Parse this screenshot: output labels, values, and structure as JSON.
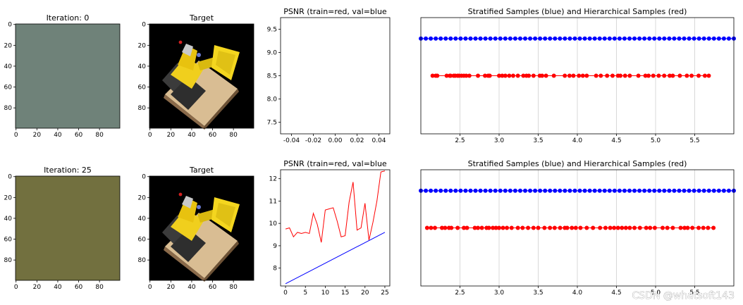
{
  "watermark": "CSDN @whatsoft143",
  "chart_data": [
    {
      "type": "heatmap",
      "title": "Iteration: 0",
      "fill_color": "#6f8279",
      "xticks": [
        "0",
        "20",
        "40",
        "60",
        "80"
      ],
      "yticks": [
        "0",
        "20",
        "40",
        "60",
        "80"
      ],
      "xlim": [
        0,
        100
      ],
      "ylim": [
        100,
        0
      ]
    },
    {
      "type": "heatmap",
      "title": "Target",
      "description_colors": {
        "background": "#000000",
        "base": "#d7b98f",
        "body": "#f2d21a"
      },
      "xticks": [
        "0",
        "20",
        "40",
        "60",
        "80"
      ],
      "yticks": [
        "0",
        "20",
        "40",
        "60",
        "80"
      ],
      "xlim": [
        0,
        100
      ],
      "ylim": [
        100,
        0
      ]
    },
    {
      "type": "line",
      "title": "PSNR (train=red, val=blue",
      "xlim": [
        -0.05,
        0.05
      ],
      "ylim": [
        7.25,
        9.75
      ],
      "xticks": [
        "-0.04",
        "-0.02",
        "0.00",
        "0.02",
        "0.04"
      ],
      "xtick_values": [
        -0.04,
        -0.02,
        0,
        0.02,
        0.04
      ],
      "yticks": [
        "7.5",
        "8.0",
        "8.5",
        "9.0",
        "9.5"
      ],
      "ytick_values": [
        7.5,
        8.0,
        8.5,
        9.0,
        9.5
      ],
      "series": []
    },
    {
      "type": "scatter",
      "title": "Stratified  Samples (blue) and Hierarchical Samples (red)",
      "xlim": [
        2.0,
        6.0
      ],
      "ylim": [
        0,
        1
      ],
      "xticks": [
        "2.5",
        "3.0",
        "3.5",
        "4.0",
        "4.5",
        "5.0",
        "5.5"
      ],
      "xtick_values": [
        2.5,
        3.0,
        3.5,
        4.0,
        4.5,
        5.0,
        5.5
      ],
      "grid": true,
      "series": [
        {
          "color": "#0000ff",
          "y": 0.82,
          "x_start": 2.0,
          "x_end": 6.0,
          "count": 64
        },
        {
          "color": "#ff0000",
          "y": 0.5,
          "x": [
            2.15,
            2.19,
            2.21,
            2.33,
            2.37,
            2.38,
            2.42,
            2.44,
            2.47,
            2.49,
            2.52,
            2.55,
            2.58,
            2.62,
            2.73,
            2.82,
            2.86,
            2.88,
            3.0,
            3.04,
            3.08,
            3.13,
            3.18,
            3.24,
            3.31,
            3.35,
            3.38,
            3.44,
            3.52,
            3.55,
            3.6,
            3.7,
            3.84,
            3.9,
            3.95,
            4.02,
            4.07,
            4.12,
            4.24,
            4.3,
            4.38,
            4.45,
            4.52,
            4.55,
            4.61,
            4.67,
            4.78,
            4.87,
            4.91,
            4.97,
            5.04,
            5.11,
            5.18,
            5.22,
            5.31,
            5.4,
            5.46,
            5.55,
            5.63,
            5.68
          ]
        }
      ]
    },
    {
      "type": "heatmap",
      "title": "Iteration: 25",
      "fill_color": "#72703f",
      "xticks": [
        "0",
        "20",
        "40",
        "60",
        "80"
      ],
      "yticks": [
        "0",
        "20",
        "40",
        "60",
        "80"
      ],
      "xlim": [
        0,
        100
      ],
      "ylim": [
        100,
        0
      ]
    },
    {
      "type": "heatmap",
      "title": "Target",
      "xticks": [
        "0",
        "20",
        "40",
        "60",
        "80"
      ],
      "yticks": [
        "0",
        "20",
        "40",
        "60",
        "80"
      ],
      "xlim": [
        0,
        100
      ],
      "ylim": [
        100,
        0
      ]
    },
    {
      "type": "line",
      "title": "PSNR (train=red, val=blue",
      "xlim": [
        -1.25,
        26.25
      ],
      "ylim": [
        7.2,
        12.4
      ],
      "xticks": [
        "0",
        "5",
        "10",
        "15",
        "20",
        "25"
      ],
      "xtick_values": [
        0,
        5,
        10,
        15,
        20,
        25
      ],
      "yticks": [
        "8",
        "9",
        "10",
        "11",
        "12"
      ],
      "ytick_values": [
        8,
        9,
        10,
        11,
        12
      ],
      "series": [
        {
          "color": "#ff0000",
          "x": [
            0,
            1,
            2,
            3,
            4,
            5,
            6,
            7,
            8,
            9,
            10,
            11,
            12,
            13,
            14,
            15,
            16,
            17,
            18,
            19,
            20,
            21,
            22,
            23,
            24,
            25
          ],
          "y": [
            9.75,
            9.8,
            9.4,
            9.6,
            9.55,
            9.6,
            9.55,
            10.45,
            9.95,
            9.15,
            10.6,
            10.65,
            10.7,
            10.1,
            9.4,
            9.45,
            10.95,
            11.85,
            9.7,
            9.8,
            10.9,
            9.25,
            10.05,
            11.0,
            12.3,
            12.35
          ]
        },
        {
          "color": "#0000ff",
          "x": [
            0,
            25
          ],
          "y": [
            7.3,
            9.6
          ]
        }
      ]
    },
    {
      "type": "scatter",
      "title": "Stratified  Samples (blue) and Hierarchical Samples (red)",
      "xlim": [
        2.0,
        6.0
      ],
      "ylim": [
        0,
        1
      ],
      "xticks": [
        "2.5",
        "3.0",
        "3.5",
        "4.0",
        "4.5",
        "5.0",
        "5.5"
      ],
      "xtick_values": [
        2.5,
        3.0,
        3.5,
        4.0,
        4.5,
        5.0,
        5.5
      ],
      "grid": true,
      "series": [
        {
          "color": "#0000ff",
          "y": 0.82,
          "x_start": 2.0,
          "x_end": 6.0,
          "count": 64
        },
        {
          "color": "#ff0000",
          "y": 0.5,
          "x": [
            2.08,
            2.13,
            2.18,
            2.27,
            2.31,
            2.36,
            2.39,
            2.47,
            2.55,
            2.59,
            2.69,
            2.73,
            2.78,
            2.84,
            2.87,
            2.92,
            2.96,
            3.0,
            3.05,
            3.1,
            3.16,
            3.24,
            3.3,
            3.37,
            3.44,
            3.5,
            3.58,
            3.65,
            3.71,
            3.78,
            3.84,
            3.87,
            3.93,
            3.98,
            4.04,
            4.12,
            4.2,
            4.29,
            4.36,
            4.42,
            4.47,
            4.52,
            4.57,
            4.62,
            4.67,
            4.73,
            4.8,
            4.88,
            4.93,
            4.99,
            5.09,
            5.15,
            5.22,
            5.32,
            5.37,
            5.41,
            5.47,
            5.55,
            5.61,
            5.67,
            5.74
          ]
        }
      ]
    }
  ]
}
